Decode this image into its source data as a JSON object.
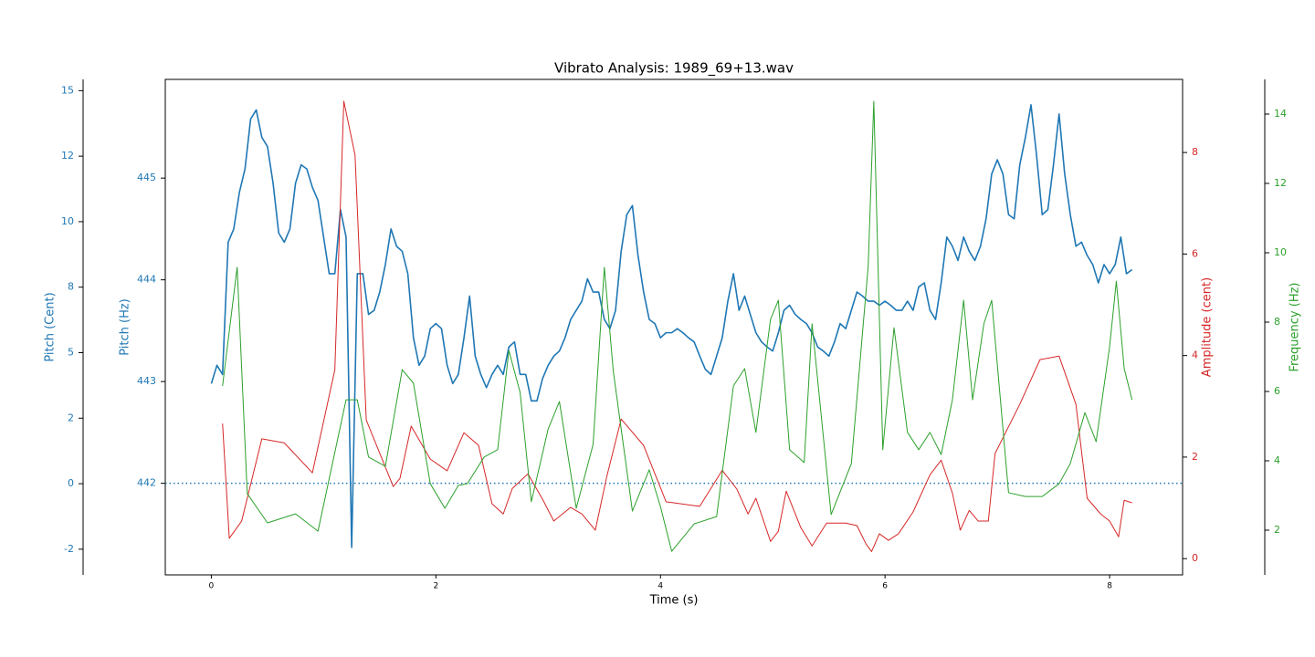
{
  "chart_data": {
    "type": "line",
    "title": "Vibrato Analysis: 1989_69+13.wav",
    "xlabel": "Time (s)",
    "xlim": [
      -0.41,
      8.65
    ],
    "xticks": [
      0,
      2,
      4,
      6,
      8
    ],
    "ylabel": "Pitch (Hz)",
    "ylim": [
      441.1,
      445.97
    ],
    "yticks": [
      442,
      443,
      444,
      445
    ],
    "y2label": "Amplitude (cent)",
    "y2lim": [
      -0.32,
      9.44
    ],
    "y2ticks": [
      0,
      2,
      4,
      6,
      8
    ],
    "y3label": "Frequency (Hz)",
    "y3lim": [
      0.71,
      15.0
    ],
    "y3ticks": [
      2,
      4,
      6,
      8,
      10,
      12,
      14
    ],
    "y4label": "Pitch (Cent)",
    "y4lim": [
      -3.48,
      15.43
    ],
    "y4ticks": [
      {
        "value": -2.5,
        "label": "-2"
      },
      0,
      {
        "value": 2.5,
        "label": "2"
      },
      5,
      {
        "value": 7.5,
        "label": "8"
      },
      10,
      {
        "value": 12.5,
        "label": "12"
      },
      15
    ],
    "reference_line": 442,
    "series": [
      {
        "color": "#1f77b4",
        "axis": "y",
        "x": [
          0,
          0.05,
          0.1,
          0.15,
          0.2,
          0.25,
          0.3,
          0.35,
          0.4,
          0.45,
          0.5,
          0.55,
          0.6,
          0.65,
          0.7,
          0.75,
          0.8,
          0.85,
          0.9,
          0.95,
          1.0,
          1.05,
          1.1,
          1.15,
          1.2,
          1.25,
          1.3,
          1.35,
          1.4,
          1.45,
          1.5,
          1.55,
          1.6,
          1.65,
          1.7,
          1.75,
          1.8,
          1.85,
          1.9,
          1.95,
          2.0,
          2.05,
          2.1,
          2.15,
          2.2,
          2.25,
          2.3,
          2.35,
          2.4,
          2.45,
          2.5,
          2.55,
          2.6,
          2.65,
          2.7,
          2.75,
          2.8,
          2.85,
          2.9,
          2.95,
          3.0,
          3.05,
          3.1,
          3.15,
          3.2,
          3.25,
          3.3,
          3.35,
          3.4,
          3.45,
          3.5,
          3.55,
          3.6,
          3.65,
          3.7,
          3.75,
          3.8,
          3.85,
          3.9,
          3.95,
          4.0,
          4.05,
          4.1,
          4.15,
          4.2,
          4.25,
          4.3,
          4.35,
          4.4,
          4.45,
          4.5,
          4.55,
          4.6,
          4.65,
          4.7,
          4.75,
          4.8,
          4.85,
          4.9,
          4.95,
          5.0,
          5.05,
          5.1,
          5.15,
          5.2,
          5.25,
          5.3,
          5.35,
          5.4,
          5.45,
          5.5,
          5.55,
          5.6,
          5.65,
          5.7,
          5.75,
          5.8,
          5.85,
          5.9,
          5.95,
          6.0,
          6.05,
          6.1,
          6.15,
          6.2,
          6.25,
          6.3,
          6.35,
          6.4,
          6.45,
          6.5,
          6.55,
          6.6,
          6.65,
          6.7,
          6.75,
          6.8,
          6.85,
          6.9,
          6.95,
          7.0,
          7.05,
          7.1,
          7.15,
          7.2,
          7.25,
          7.3,
          7.35,
          7.4,
          7.45,
          7.5,
          7.55,
          7.6,
          7.65,
          7.7,
          7.75,
          7.8,
          7.85,
          7.9,
          7.95,
          8.0,
          8.05,
          8.1,
          8.15,
          8.2
        ],
        "values": [
          442.98,
          443.16,
          443.07,
          444.37,
          444.5,
          444.86,
          445.09,
          445.58,
          445.67,
          445.4,
          445.31,
          444.95,
          444.46,
          444.37,
          444.5,
          444.95,
          445.13,
          445.09,
          444.91,
          444.78,
          444.42,
          444.06,
          444.06,
          444.69,
          444.42,
          441.37,
          444.06,
          444.06,
          443.66,
          443.7,
          443.88,
          444.15,
          444.5,
          444.33,
          444.28,
          444.06,
          443.43,
          443.16,
          443.25,
          443.52,
          443.57,
          443.52,
          443.16,
          442.98,
          443.07,
          443.43,
          443.84,
          443.25,
          443.07,
          442.94,
          443.07,
          443.16,
          443.07,
          443.34,
          443.39,
          443.07,
          443.07,
          442.81,
          442.81,
          443.03,
          443.16,
          443.25,
          443.3,
          443.43,
          443.61,
          443.7,
          443.79,
          444.01,
          443.88,
          443.88,
          443.61,
          443.52,
          443.7,
          444.28,
          444.64,
          444.73,
          444.24,
          443.88,
          443.61,
          443.57,
          443.43,
          443.48,
          443.48,
          443.52,
          443.48,
          443.43,
          443.39,
          443.25,
          443.12,
          443.07,
          443.25,
          443.43,
          443.79,
          444.06,
          443.7,
          443.84,
          443.66,
          443.48,
          443.39,
          443.34,
          443.3,
          443.48,
          443.7,
          443.75,
          443.66,
          443.61,
          443.57,
          443.48,
          443.34,
          443.3,
          443.25,
          443.39,
          443.57,
          443.52,
          443.7,
          443.88,
          443.84,
          443.79,
          443.79,
          443.75,
          443.79,
          443.75,
          443.7,
          443.7,
          443.79,
          443.7,
          443.93,
          443.97,
          443.7,
          443.61,
          443.97,
          444.42,
          444.33,
          444.19,
          444.42,
          444.28,
          444.19,
          444.33,
          444.6,
          445.04,
          445.18,
          445.04,
          444.64,
          444.6,
          445.13,
          445.4,
          445.72,
          445.22,
          444.64,
          444.69,
          445.13,
          445.63,
          445.04,
          444.64,
          444.33,
          444.37,
          444.24,
          444.15,
          443.97,
          444.15,
          444.06,
          444.15,
          444.42,
          444.06,
          444.1
        ]
      },
      {
        "color": "#d62728",
        "axis": "y2",
        "x": [
          0.1,
          0.16,
          0.27,
          0.45,
          0.65,
          0.9,
          1.1,
          1.18,
          1.28,
          1.38,
          1.62,
          1.68,
          1.78,
          1.95,
          2.1,
          2.25,
          2.38,
          2.5,
          2.6,
          2.68,
          2.82,
          2.95,
          3.05,
          3.2,
          3.3,
          3.42,
          3.52,
          3.65,
          3.85,
          4.05,
          4.35,
          4.55,
          4.68,
          4.78,
          4.85,
          4.98,
          5.05,
          5.12,
          5.25,
          5.35,
          5.48,
          5.65,
          5.75,
          5.83,
          5.88,
          5.95,
          6.03,
          6.12,
          6.25,
          6.4,
          6.5,
          6.6,
          6.67,
          6.75,
          6.83,
          6.92,
          6.98,
          7.2,
          7.38,
          7.55,
          7.7,
          7.8,
          7.92,
          8.0,
          8.08,
          8.13,
          8.2
        ],
        "values": [
          2.66,
          0.4,
          0.74,
          2.36,
          2.28,
          1.69,
          3.72,
          9.01,
          7.95,
          2.73,
          1.42,
          1.58,
          2.61,
          1.96,
          1.73,
          2.48,
          2.23,
          1.08,
          0.88,
          1.38,
          1.67,
          1.17,
          0.74,
          1.01,
          0.88,
          0.56,
          1.6,
          2.75,
          2.23,
          1.12,
          1.03,
          1.74,
          1.37,
          0.88,
          1.19,
          0.34,
          0.54,
          1.33,
          0.61,
          0.25,
          0.7,
          0.7,
          0.65,
          0.29,
          0.14,
          0.49,
          0.36,
          0.49,
          0.92,
          1.65,
          1.94,
          1.29,
          0.56,
          0.95,
          0.74,
          0.74,
          2.07,
          3.04,
          3.92,
          3.99,
          3.04,
          1.19,
          0.88,
          0.74,
          0.43,
          1.15,
          1.1
        ]
      },
      {
        "color": "#2ca02c",
        "axis": "y3",
        "x": [
          0.1,
          0.23,
          0.32,
          0.5,
          0.75,
          0.95,
          1.2,
          1.3,
          1.4,
          1.55,
          1.7,
          1.8,
          1.95,
          2.08,
          2.2,
          2.28,
          2.43,
          2.55,
          2.65,
          2.75,
          2.85,
          3.0,
          3.1,
          3.25,
          3.4,
          3.5,
          3.58,
          3.75,
          3.9,
          4.0,
          4.1,
          4.3,
          4.5,
          4.65,
          4.75,
          4.85,
          4.98,
          5.05,
          5.15,
          5.28,
          5.35,
          5.52,
          5.7,
          5.85,
          5.9,
          5.98,
          6.08,
          6.2,
          6.3,
          6.4,
          6.5,
          6.6,
          6.7,
          6.78,
          6.88,
          6.95,
          7.1,
          7.25,
          7.4,
          7.55,
          7.65,
          7.78,
          7.88,
          8.0,
          8.06,
          8.13,
          8.2
        ],
        "values": [
          6.16,
          9.58,
          3.05,
          2.21,
          2.47,
          1.97,
          5.76,
          5.76,
          4.11,
          3.84,
          6.63,
          6.24,
          3.34,
          2.63,
          3.29,
          3.34,
          4.11,
          4.32,
          7.18,
          5.97,
          2.82,
          4.92,
          5.71,
          2.63,
          4.47,
          9.58,
          6.58,
          2.55,
          3.74,
          2.68,
          1.39,
          2.18,
          2.39,
          6.16,
          6.66,
          4.82,
          8.08,
          8.63,
          4.32,
          3.95,
          7.95,
          2.45,
          3.92,
          9.61,
          14.37,
          4.32,
          7.84,
          4.82,
          4.32,
          4.82,
          4.18,
          5.76,
          8.63,
          5.76,
          7.95,
          8.63,
          3.08,
          2.97,
          2.97,
          3.34,
          3.92,
          5.39,
          4.55,
          7.29,
          9.18,
          6.66,
          5.76
        ]
      }
    ]
  }
}
